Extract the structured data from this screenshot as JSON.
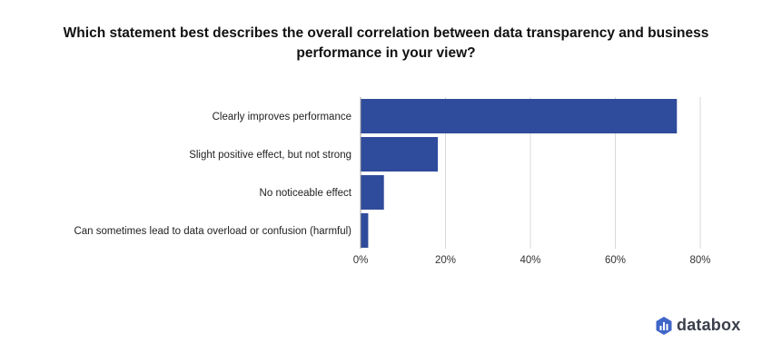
{
  "chart_data": {
    "type": "bar",
    "orientation": "horizontal",
    "title": "Which statement best describes the overall correlation between data transparency and business performance in your view?",
    "categories": [
      "Clearly improves performance",
      "Slight positive effect, but not strong",
      "No noticeable effect",
      "Can sometimes lead to data overload or confusion (harmful)"
    ],
    "values": [
      74.5,
      18.2,
      5.5,
      1.8
    ],
    "xlim": [
      0,
      80
    ],
    "x_ticks": [
      "0%",
      "20%",
      "40%",
      "60%",
      "80%"
    ],
    "grid": true,
    "bar_color": "#2f4b9b",
    "grid_color": "#d9d9d9"
  },
  "branding": {
    "logo_text": "databox",
    "logo_color": "#3f66c8"
  }
}
